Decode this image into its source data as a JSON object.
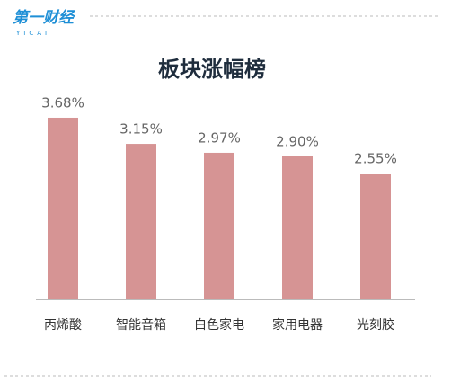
{
  "logo": {
    "text": "第一财经",
    "sub": "YICAI"
  },
  "chart_data": {
    "type": "bar",
    "title": "板块涨幅榜",
    "categories": [
      "丙烯酸",
      "智能音箱",
      "白色家电",
      "家用电器",
      "光刻胶"
    ],
    "values": [
      3.68,
      3.15,
      2.97,
      2.9,
      2.55
    ],
    "value_labels": [
      "3.68%",
      "3.15%",
      "2.97%",
      "2.90%",
      "2.55%"
    ],
    "color": "#d69494"
  }
}
